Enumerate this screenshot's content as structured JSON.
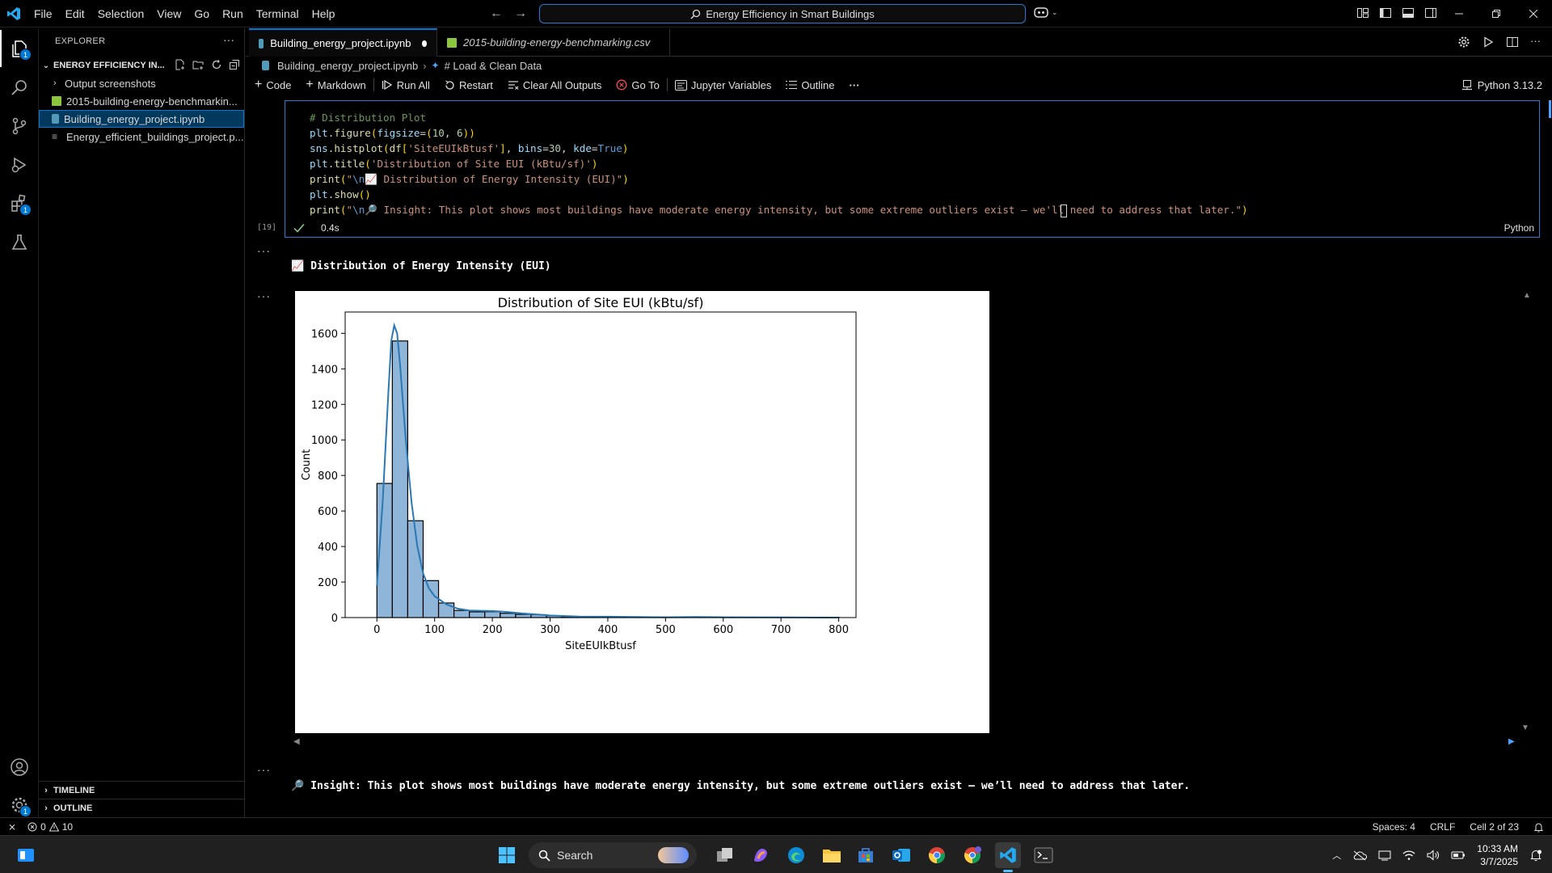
{
  "window": {
    "menu": [
      "File",
      "Edit",
      "Selection",
      "View",
      "Go",
      "Run",
      "Terminal",
      "Help"
    ],
    "search_text": "Energy Efficiency in Smart Buildings"
  },
  "sidebar": {
    "header": "EXPLORER",
    "root_folder": "ENERGY EFFICIENCY IN...",
    "items": [
      {
        "label": "Output screenshots",
        "type": "folder"
      },
      {
        "label": "2015-building-energy-benchmarkin...",
        "type": "csv"
      },
      {
        "label": "Building_energy_project.ipynb",
        "type": "notebook"
      },
      {
        "label": "Energy_efficient_buildings_project.p...",
        "type": "text"
      }
    ],
    "timeline": "TIMELINE",
    "outline": "OUTLINE"
  },
  "tabs": [
    {
      "label": "Building_energy_project.ipynb",
      "active": true,
      "modified": true
    },
    {
      "label": "2015-building-energy-benchmarking.csv",
      "active": false,
      "modified": false
    }
  ],
  "breadcrumb": {
    "file": "Building_energy_project.ipynb",
    "section": "# Load & Clean Data"
  },
  "toolbar": {
    "code": "Code",
    "markdown": "Markdown",
    "run_all": "Run All",
    "restart": "Restart",
    "clear_outputs": "Clear All Outputs",
    "go_to": "Go To",
    "variables": "Jupyter Variables",
    "outline": "Outline",
    "more": "···",
    "kernel": "Python 3.13.2"
  },
  "cell": {
    "exec_count": "[19]",
    "exec_time": "0.4s",
    "language": "Python",
    "lines": [
      "# Distribution Plot",
      "plt.figure(figsize=(10, 6))",
      "sns.histplot(df['SiteEUIkBtusf'], bins=30, kde=True)",
      "plt.title('Distribution of Site EUI (kBtu/sf)')",
      "print(\"\\n📈 Distribution of Energy Intensity (EUI)\")",
      "plt.show()",
      "print(\"\\n🔎 Insight: This plot shows most buildings have moderate energy intensity, but some extreme outliers exist — we'll need to address that later.\")"
    ]
  },
  "outputs": {
    "heading_emoji": "📈",
    "heading": "Distribution of Energy Intensity (EUI)",
    "insight_emoji": "🔎",
    "insight": "Insight: This plot shows most buildings have moderate energy intensity, but some extreme outliers exist — we’ll need to address that later.",
    "more": "···"
  },
  "chart_data": {
    "type": "bar",
    "title": "Distribution of Site EUI (kBtu/sf)",
    "xlabel": "SiteEUIkBtusf",
    "ylabel": "Count",
    "xlim": [
      -55,
      830
    ],
    "ylim": [
      0,
      1720
    ],
    "xticks": [
      0,
      100,
      200,
      300,
      400,
      500,
      600,
      700,
      800
    ],
    "yticks": [
      0,
      200,
      400,
      600,
      800,
      1000,
      1200,
      1400,
      1600
    ],
    "bin_width": 26.7,
    "bins": [
      {
        "x0": 0,
        "count": 755
      },
      {
        "x0": 26.7,
        "count": 1557
      },
      {
        "x0": 53.4,
        "count": 545
      },
      {
        "x0": 80.1,
        "count": 208
      },
      {
        "x0": 106.8,
        "count": 82
      },
      {
        "x0": 133.5,
        "count": 40
      },
      {
        "x0": 160.2,
        "count": 32
      },
      {
        "x0": 186.9,
        "count": 33
      },
      {
        "x0": 213.6,
        "count": 24
      },
      {
        "x0": 240.3,
        "count": 18
      },
      {
        "x0": 267,
        "count": 16
      },
      {
        "x0": 293.7,
        "count": 10
      },
      {
        "x0": 320.4,
        "count": 6
      },
      {
        "x0": 347.1,
        "count": 5
      },
      {
        "x0": 373.8,
        "count": 6
      },
      {
        "x0": 400.5,
        "count": 4
      },
      {
        "x0": 427.2,
        "count": 3
      },
      {
        "x0": 453.9,
        "count": 2
      },
      {
        "x0": 480.6,
        "count": 2
      },
      {
        "x0": 507.3,
        "count": 1
      },
      {
        "x0": 534,
        "count": 2
      },
      {
        "x0": 560.7,
        "count": 1
      },
      {
        "x0": 587.4,
        "count": 1
      },
      {
        "x0": 614.1,
        "count": 1
      },
      {
        "x0": 640.8,
        "count": 1
      },
      {
        "x0": 667.5,
        "count": 1
      },
      {
        "x0": 694.2,
        "count": 1
      },
      {
        "x0": 720.9,
        "count": 0
      },
      {
        "x0": 747.6,
        "count": 1
      },
      {
        "x0": 774.3,
        "count": 1
      }
    ],
    "kde": [
      [
        0,
        180
      ],
      [
        10,
        650
      ],
      [
        20,
        1280
      ],
      [
        25,
        1560
      ],
      [
        30,
        1645
      ],
      [
        35,
        1600
      ],
      [
        40,
        1430
      ],
      [
        50,
        1000
      ],
      [
        60,
        650
      ],
      [
        70,
        400
      ],
      [
        80,
        250
      ],
      [
        90,
        165
      ],
      [
        100,
        120
      ],
      [
        120,
        75
      ],
      [
        140,
        50
      ],
      [
        160,
        40
      ],
      [
        180,
        38
      ],
      [
        200,
        37
      ],
      [
        220,
        33
      ],
      [
        250,
        24
      ],
      [
        300,
        12
      ],
      [
        350,
        6
      ],
      [
        400,
        5
      ],
      [
        450,
        3
      ],
      [
        500,
        2
      ],
      [
        550,
        3
      ],
      [
        600,
        2
      ],
      [
        700,
        1
      ],
      [
        800,
        0
      ]
    ],
    "bar_color": "#8fb5d8",
    "kde_color": "#2a78b4"
  },
  "statusbar": {
    "errors": "0",
    "warnings": "10",
    "spaces": "Spaces: 4",
    "eol": "CRLF",
    "cell": "Cell 2 of 23"
  },
  "taskbar": {
    "search": "Search",
    "time": "10:33 AM",
    "date": "3/7/2025"
  }
}
